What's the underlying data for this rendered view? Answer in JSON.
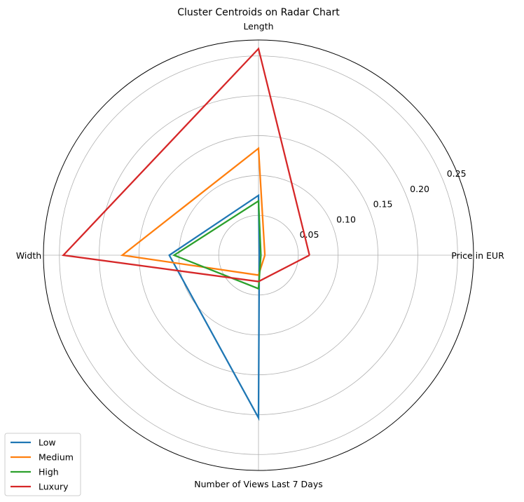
{
  "chart_data": {
    "type": "radar",
    "title": "Cluster Centroids on Radar Chart",
    "axes": [
      "Price in EUR",
      "Length",
      "Width",
      "Number of Views Last 7 Days"
    ],
    "rlim": [
      0,
      0.27
    ],
    "r_ticks": [
      0.05,
      0.1,
      0.15,
      0.2,
      0.25
    ],
    "r_tick_labels": [
      "0.05",
      "0.10",
      "0.15",
      "0.20",
      "0.25"
    ],
    "grid": true,
    "legend_position": "lower-left",
    "series": [
      {
        "name": "Low",
        "color": "#1f77b4",
        "values": [
          0.001,
          0.075,
          0.112,
          0.204
        ]
      },
      {
        "name": "Medium",
        "color": "#ff7f0e",
        "values": [
          0.008,
          0.134,
          0.171,
          0.025
        ]
      },
      {
        "name": "High",
        "color": "#2ca02c",
        "values": [
          0.003,
          0.068,
          0.106,
          0.042
        ]
      },
      {
        "name": "Luxury",
        "color": "#d62728",
        "values": [
          0.064,
          0.259,
          0.245,
          0.033
        ]
      }
    ]
  }
}
